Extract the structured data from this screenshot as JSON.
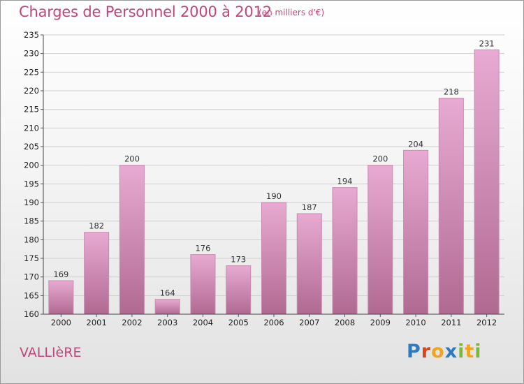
{
  "chart_data": {
    "type": "bar",
    "title": "Charges de Personnel 2000 à 2012",
    "subtitle": "(en milliers d'€)",
    "categories": [
      "2000",
      "2001",
      "2002",
      "2003",
      "2004",
      "2005",
      "2006",
      "2007",
      "2008",
      "2009",
      "2010",
      "2011",
      "2012"
    ],
    "values": [
      169,
      182,
      200,
      164,
      176,
      173,
      190,
      187,
      194,
      200,
      204,
      218,
      231
    ],
    "xlabel": "",
    "ylabel": "",
    "ylim": [
      160,
      235
    ],
    "ytick_step": 5,
    "grid": true,
    "legend": "none",
    "colors": {
      "bar_top": "#e8aad2",
      "bar_bottom": "#b06a92",
      "bar_edge": "#c98ab0",
      "accent_text": "#c2467c"
    }
  },
  "footer": {
    "commune": "VALLIèRE",
    "logo_letters": [
      {
        "ch": "P",
        "color": "#2e7bc4"
      },
      {
        "ch": "r",
        "color": "#e0421b"
      },
      {
        "ch": "o",
        "color": "#f2a51c"
      },
      {
        "ch": "x",
        "color": "#2e7bc4"
      },
      {
        "ch": "i",
        "color": "#7bb83a"
      },
      {
        "ch": "t",
        "color": "#f2a51c"
      },
      {
        "ch": "i",
        "color": "#7bb83a"
      }
    ]
  }
}
